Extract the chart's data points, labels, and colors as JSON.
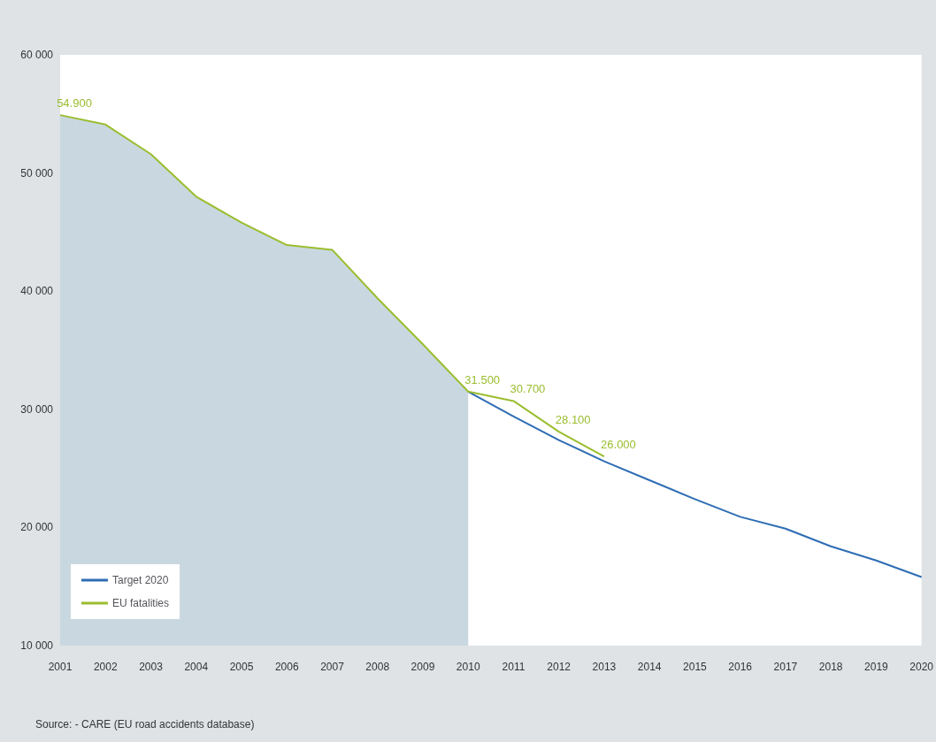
{
  "chart_data": {
    "type": "line",
    "categories": [
      "2001",
      "2002",
      "2003",
      "2004",
      "2005",
      "2006",
      "2007",
      "2008",
      "2009",
      "2010",
      "2011",
      "2012",
      "2013",
      "2014",
      "2015",
      "2016",
      "2017",
      "2018",
      "2019",
      "2020"
    ],
    "series": [
      {
        "type": "area",
        "color": "#c9d8e0",
        "values": [
          54900,
          54100,
          51600,
          48000,
          45800,
          43900,
          43500,
          39400,
          35500,
          31500,
          null,
          null,
          null,
          null,
          null,
          null,
          null,
          null,
          null,
          null
        ]
      },
      {
        "name": "Target 2020",
        "color": "#2e6db4",
        "values": [
          null,
          null,
          null,
          null,
          null,
          null,
          null,
          null,
          null,
          31500,
          29400,
          27400,
          25600,
          24000,
          22400,
          20900,
          19900,
          18400,
          17200,
          15800
        ]
      },
      {
        "name": "EU fatalities",
        "color": "#9bbd2f",
        "values": [
          54900,
          54100,
          51600,
          48000,
          45800,
          43900,
          43500,
          39400,
          35500,
          31500,
          30700,
          28100,
          26000,
          null,
          null,
          null,
          null,
          null,
          null,
          null
        ],
        "value_labels": [
          "54.900",
          null,
          null,
          null,
          null,
          null,
          null,
          null,
          null,
          "31.500",
          "30.700",
          "28.100",
          "26.000",
          null,
          null,
          null,
          null,
          null,
          null,
          null
        ]
      }
    ],
    "ylim": [
      10000,
      60000
    ],
    "yticks": [
      {
        "value": 10000,
        "label": "10 000"
      },
      {
        "value": 20000,
        "label": "20 000"
      },
      {
        "value": 30000,
        "label": "30 000"
      },
      {
        "value": 40000,
        "label": "40 000"
      },
      {
        "value": 50000,
        "label": "50 000"
      },
      {
        "value": 60000,
        "label": "60 000"
      }
    ],
    "grid": false,
    "legend": "bottom left",
    "marker": "none",
    "line_style": "solid",
    "annotations": [
      "Source: - CARE (EU road accidents database)"
    ]
  }
}
